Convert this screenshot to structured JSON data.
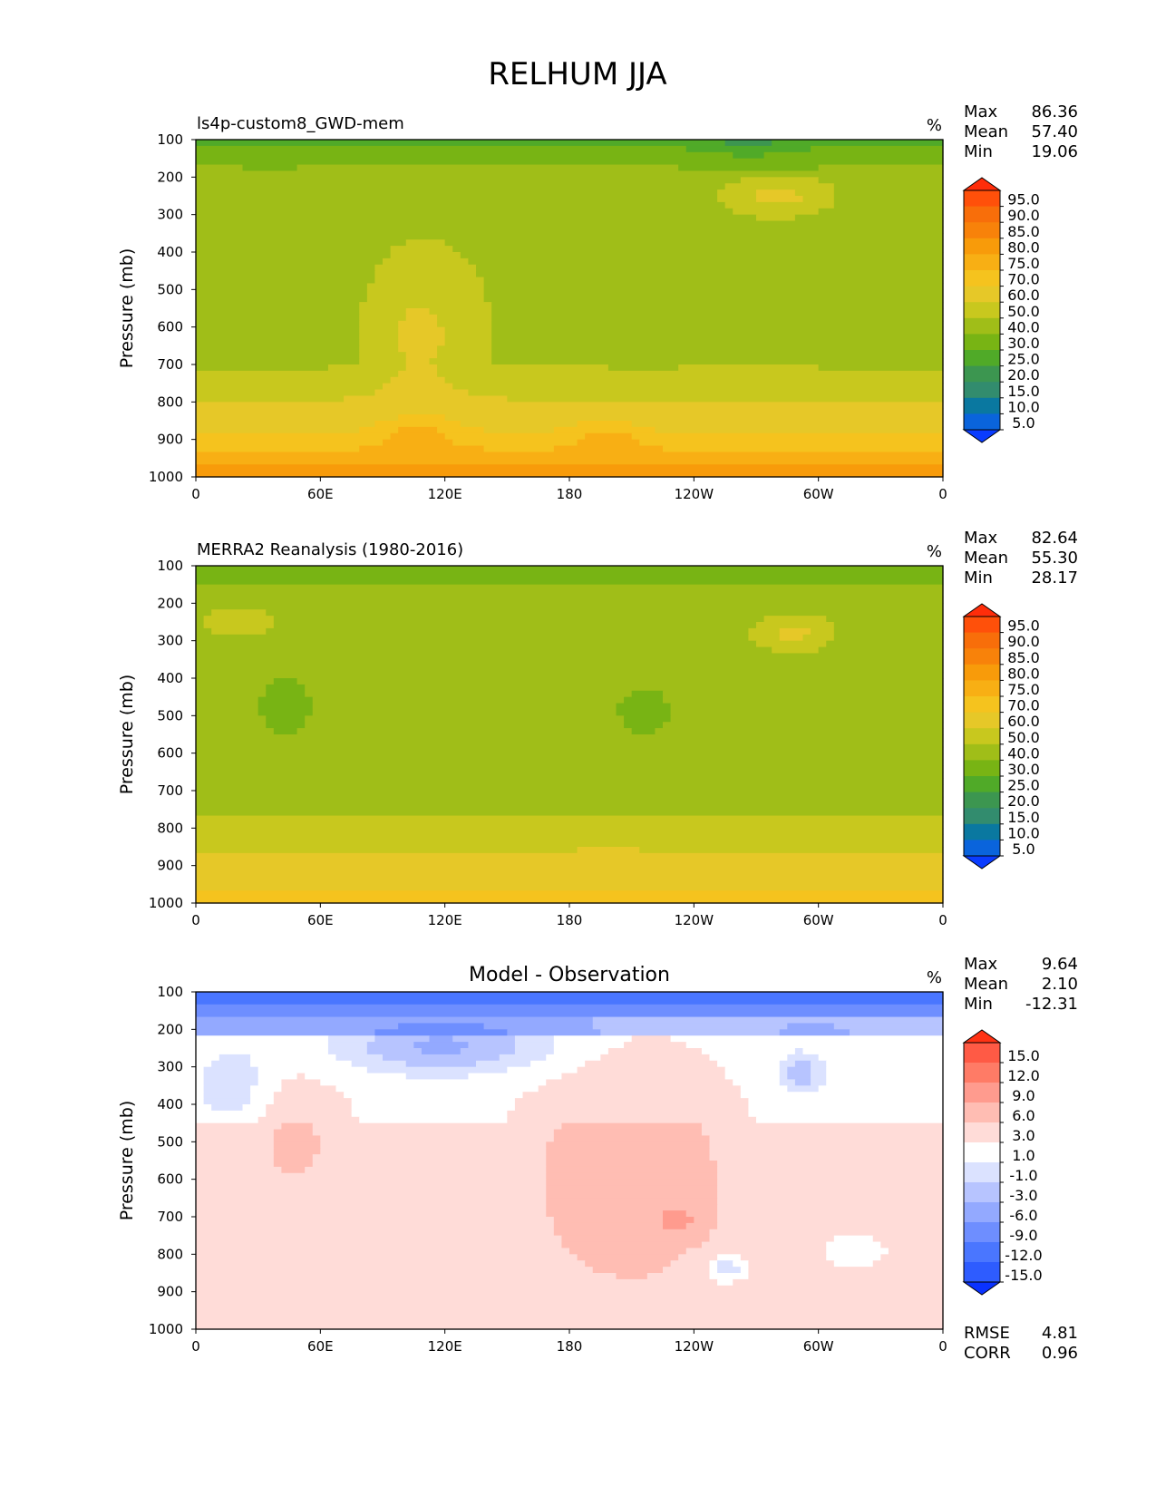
{
  "figure_title": "RELHUM JJA",
  "colors": {
    "abs_levels": [
      "#0a3cff",
      "#0a64dc",
      "#0a78a0",
      "#328c6e",
      "#3c9650",
      "#50aa28",
      "#78b414",
      "#a0be18",
      "#c8c81e",
      "#e6c828",
      "#f5c31e",
      "#f8af14",
      "#f89b0a",
      "#f8820a",
      "#f86e0a",
      "#ff500a",
      "#ff2d0a"
    ],
    "diff_levels": [
      "#0a32ff",
      "#2e5cff",
      "#4a76ff",
      "#6e8eff",
      "#93a9ff",
      "#b7c4ff",
      "#dbe2ff",
      "#ffffff",
      "#ffdcd8",
      "#ffbdb3",
      "#ff9b8e",
      "#ff7b66",
      "#ff5a45",
      "#ff3214"
    ]
  },
  "chart_data": [
    {
      "type": "heatmap",
      "panel": "test",
      "title": "ls4p-custom8_GWD-mem",
      "units": "%",
      "stats": {
        "max_label": "Max",
        "max": "86.36",
        "mean_label": "Mean",
        "mean": "57.40",
        "min_label": "Min",
        "min": "19.06"
      },
      "ylabel": "Pressure (mb)",
      "yticks": [
        "100",
        "200",
        "300",
        "400",
        "500",
        "600",
        "700",
        "800",
        "900",
        "1000"
      ],
      "xticks": [
        "0",
        "60E",
        "120E",
        "180",
        "120W",
        "60W",
        "0"
      ],
      "ylim": [
        100,
        1000
      ],
      "xlim": [
        0,
        360
      ],
      "colorbar_levels": [
        "95.0",
        "90.0",
        "85.0",
        "80.0",
        "75.0",
        "70.0",
        "60.0",
        "50.0",
        "40.0",
        "30.0",
        "25.0",
        "20.0",
        "15.0",
        "10.0",
        "5.0"
      ]
    },
    {
      "type": "heatmap",
      "panel": "reference",
      "title": "MERRA2 Reanalysis (1980-2016)",
      "units": "%",
      "stats": {
        "max_label": "Max",
        "max": "82.64",
        "mean_label": "Mean",
        "mean": "55.30",
        "min_label": "Min",
        "min": "28.17"
      },
      "ylabel": "Pressure (mb)",
      "yticks": [
        "100",
        "200",
        "300",
        "400",
        "500",
        "600",
        "700",
        "800",
        "900",
        "1000"
      ],
      "xticks": [
        "0",
        "60E",
        "120E",
        "180",
        "120W",
        "60W",
        "0"
      ],
      "ylim": [
        100,
        1000
      ],
      "xlim": [
        0,
        360
      ],
      "colorbar_levels": [
        "95.0",
        "90.0",
        "85.0",
        "80.0",
        "75.0",
        "70.0",
        "60.0",
        "50.0",
        "40.0",
        "30.0",
        "25.0",
        "20.0",
        "15.0",
        "10.0",
        "5.0"
      ]
    },
    {
      "type": "heatmap",
      "panel": "difference",
      "title": "Model - Observation",
      "units": "%",
      "stats": {
        "max_label": "Max",
        "max": "9.64",
        "mean_label": "Mean",
        "mean": "2.10",
        "min_label": "Min",
        "min": "-12.31"
      },
      "ylabel": "Pressure (mb)",
      "yticks": [
        "100",
        "200",
        "300",
        "400",
        "500",
        "600",
        "700",
        "800",
        "900",
        "1000"
      ],
      "xticks": [
        "0",
        "60E",
        "120E",
        "180",
        "120W",
        "60W",
        "0"
      ],
      "ylim": [
        100,
        1000
      ],
      "xlim": [
        0,
        360
      ],
      "colorbar_levels": [
        "15.0",
        "12.0",
        "9.0",
        "6.0",
        "3.0",
        "1.0",
        "-1.0",
        "-3.0",
        "-6.0",
        "-9.0",
        "-12.0",
        "-15.0"
      ],
      "metrics": {
        "rmse_label": "RMSE",
        "rmse": "4.81",
        "corr_label": "CORR",
        "corr": "0.96"
      }
    }
  ]
}
